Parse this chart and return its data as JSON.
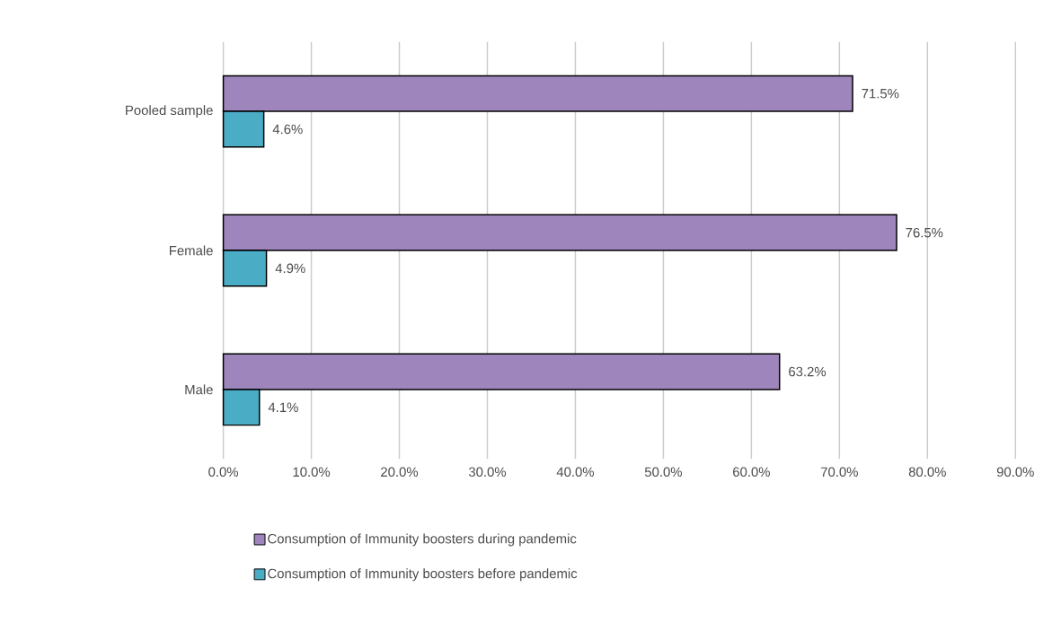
{
  "chart_data": {
    "type": "bar",
    "orientation": "horizontal",
    "categories": [
      "Pooled sample",
      "Female",
      "Male"
    ],
    "series": [
      {
        "name": "Consumption of Immunity boosters during pandemic",
        "color": "#9e86bc",
        "values": [
          71.5,
          76.5,
          63.2
        ],
        "value_labels": [
          "71.5%",
          "76.5%",
          "63.2%"
        ]
      },
      {
        "name": "Consumption of Immunity boosters before pandemic",
        "color": "#4bacc6",
        "values": [
          4.6,
          4.9,
          4.1
        ],
        "value_labels": [
          "4.6%",
          "4.9%",
          "4.1%"
        ]
      }
    ],
    "xlim": [
      0,
      90
    ],
    "xticks": [
      {
        "value": 0,
        "label": "0.0%"
      },
      {
        "value": 10,
        "label": "10.0%"
      },
      {
        "value": 20,
        "label": "20.0%"
      },
      {
        "value": 30,
        "label": "30.0%"
      },
      {
        "value": 40,
        "label": "40.0%"
      },
      {
        "value": 50,
        "label": "50.0%"
      },
      {
        "value": 60,
        "label": "60.0%"
      },
      {
        "value": 70,
        "label": "70.0%"
      },
      {
        "value": 80,
        "label": "80.0%"
      },
      {
        "value": 90,
        "label": "90.0%"
      }
    ],
    "grid": "x",
    "legend": "bottom"
  }
}
